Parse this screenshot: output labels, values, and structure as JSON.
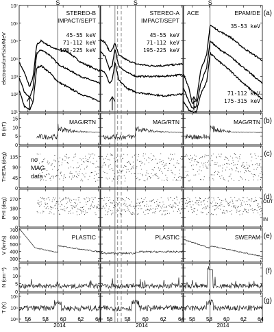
{
  "chart_data": {
    "type": "line",
    "x_axis": {
      "ticks": [
        "56",
        "58",
        "60",
        "62",
        "64"
      ],
      "year": "2014",
      "xlim": [
        55,
        64.2
      ]
    },
    "shock_marker": "S",
    "spacecraft_columns": [
      {
        "id": "stb",
        "flux_instrument": "STEREO-B",
        "flux_instrument2": "IMPACT/SEPT",
        "flux_channels": [
          "45-55 keV",
          "71-112 keV",
          "195-225 keV"
        ],
        "mag_label": "MAG/RTN",
        "plasma_label": "PLASMA",
        "plasma_label_text": "PLASTIC",
        "no_data_note": [
          "no",
          "MAG",
          "data"
        ]
      },
      {
        "id": "sta",
        "flux_instrument": "STEREO-A",
        "flux_instrument2": "IMPACT/SEPT",
        "flux_channels": [
          "45-55 keV",
          "71-112 keV",
          "195-225 keV"
        ],
        "mag_label": "MAG/RTN",
        "plasma_label_text": "PLASTIC"
      },
      {
        "id": "ace",
        "flux_instrument": "ACE",
        "flux_instrument2": "EPAM/DE",
        "flux_channels_top": [
          "35-53 keV"
        ],
        "flux_channels_bottom": [
          "71-112 keV",
          "175-315 keV"
        ],
        "mag_label": "MAG/RTN",
        "plasma_label_text": "SWEPAM"
      }
    ],
    "panels": [
      {
        "id": "a",
        "tag": "(a)",
        "ylabel": "electrons/cm²/s/sr/MeV",
        "scale": "log",
        "yticks": [
          "10¹",
          "10²",
          "10³",
          "10⁴",
          "10⁵",
          "10⁶",
          "10⁷"
        ],
        "ylim": [
          1,
          7
        ]
      },
      {
        "id": "b",
        "tag": "(b)",
        "ylabel": "B (nT)",
        "yticks": [
          "0",
          "5",
          "10",
          "15"
        ],
        "ylim": [
          0,
          18
        ]
      },
      {
        "id": "c",
        "tag": "(c)",
        "ylabel": "THETA (deg)",
        "yticks": [
          "0",
          "45",
          "90",
          "135"
        ],
        "ylim": [
          0,
          180
        ]
      },
      {
        "id": "d",
        "tag": "(d)",
        "ylabel": "PHI (deg)",
        "yticks": [
          "0",
          "90",
          "180",
          "270"
        ],
        "ylim": [
          0,
          360
        ],
        "side_labels": [
          "OUT",
          "IN"
        ]
      },
      {
        "id": "e",
        "tag": "(e)",
        "ylabel": "V (km/s)",
        "yticks": [
          "300",
          "400",
          "500",
          "600",
          "700"
        ],
        "ylim": [
          250,
          720
        ]
      },
      {
        "id": "f",
        "tag": "(f)",
        "ylabel": "N (cm⁻³)",
        "yticks": [
          "0",
          "5",
          "10",
          "15"
        ],
        "ylim": [
          0,
          18
        ]
      },
      {
        "id": "g",
        "tag": "(g)",
        "ylabel": "T (K)",
        "scale": "log",
        "yticks": [
          "10⁴",
          "10⁵",
          "10⁶"
        ],
        "ylim": [
          3.7,
          6.3
        ]
      }
    ],
    "series": [
      {
        "column": "stb",
        "panel": "a",
        "name": "45-55 keV",
        "x": [
          55.0,
          55.6,
          56.2,
          56.6,
          57.0,
          57.5,
          58.5,
          59.4,
          60.5,
          62.0,
          64.2
        ],
        "y": [
          3.8,
          3.2,
          2.4,
          3.0,
          4.8,
          5.0,
          4.7,
          4.5,
          4.4,
          3.8,
          3.3
        ]
      },
      {
        "column": "stb",
        "panel": "a",
        "name": "71-112 keV",
        "x": [
          55.0,
          55.6,
          56.2,
          56.6,
          57.0,
          57.5,
          58.5,
          59.4,
          60.5,
          62.0,
          64.2
        ],
        "y": [
          2.9,
          2.1,
          1.8,
          2.4,
          4.3,
          4.5,
          4.2,
          3.7,
          3.4,
          3.0,
          2.6
        ]
      },
      {
        "column": "stb",
        "panel": "a",
        "name": "195-225 keV",
        "x": [
          55.0,
          55.6,
          56.2,
          56.6,
          57.0,
          57.5,
          58.5,
          59.4,
          60.5,
          62.0,
          64.2
        ],
        "y": [
          2.2,
          1.3,
          1.1,
          1.6,
          3.5,
          3.6,
          3.2,
          2.7,
          2.4,
          2.0,
          1.6
        ]
      },
      {
        "column": "sta",
        "panel": "a",
        "name": "45-55 keV",
        "x": [
          55.0,
          55.5,
          56.0,
          56.3,
          56.6,
          57.0,
          58.0,
          59.0,
          60.5,
          62.0,
          64.2
        ],
        "y": [
          5.1,
          4.9,
          4.4,
          4.5,
          4.9,
          4.2,
          3.9,
          3.7,
          3.6,
          3.6,
          3.7
        ]
      },
      {
        "column": "sta",
        "panel": "a",
        "name": "71-112 keV",
        "x": [
          55.0,
          55.5,
          56.0,
          56.3,
          56.6,
          57.0,
          58.0,
          59.0,
          60.5,
          62.0,
          64.2
        ],
        "y": [
          4.4,
          4.1,
          3.4,
          3.6,
          4.6,
          3.6,
          3.2,
          3.0,
          3.0,
          3.0,
          3.1
        ]
      },
      {
        "column": "sta",
        "panel": "a",
        "name": "195-225 keV",
        "x": [
          55.0,
          55.5,
          56.0,
          56.3,
          56.6,
          57.0,
          58.0,
          59.0,
          60.5,
          62.0,
          64.2
        ],
        "y": [
          3.4,
          3.2,
          2.6,
          2.8,
          3.8,
          2.8,
          2.3,
          2.1,
          2.0,
          1.9,
          2.0
        ]
      },
      {
        "column": "ace",
        "panel": "a",
        "name": "35-53 keV",
        "x": [
          55.0,
          55.6,
          56.0,
          56.5,
          57.0,
          57.7,
          58.1,
          59.0,
          60.5,
          62.0,
          64.2
        ],
        "y": [
          3.1,
          2.4,
          1.5,
          1.6,
          3.4,
          4.2,
          5.9,
          5.6,
          5.2,
          4.6,
          3.9
        ]
      },
      {
        "column": "ace",
        "panel": "a",
        "name": "71-112 keV",
        "x": [
          55.0,
          55.6,
          56.0,
          56.5,
          57.0,
          57.7,
          58.1,
          59.0,
          60.5,
          62.0,
          64.2
        ],
        "y": [
          2.3,
          1.6,
          1.2,
          1.3,
          2.6,
          3.5,
          5.0,
          4.6,
          4.1,
          3.5,
          2.6
        ]
      },
      {
        "column": "ace",
        "panel": "a",
        "name": "175-315 keV",
        "x": [
          55.0,
          55.6,
          56.0,
          56.5,
          57.0,
          57.7,
          58.1,
          59.0,
          60.5,
          62.0,
          64.2
        ],
        "y": [
          1.6,
          1.1,
          1.0,
          1.0,
          2.0,
          2.7,
          4.3,
          3.9,
          3.3,
          2.6,
          1.7
        ]
      }
    ],
    "markers": {
      "stb": {
        "shock_x": 59.4,
        "arrow_x": 56.2
      },
      "sta": {
        "shock_x": 58.9,
        "arrow_x": 56.3,
        "dashed_x": [
          56.9,
          57.3
        ],
        "solid_x": [
          56.6
        ]
      },
      "ace": {
        "shock_x": 58.1,
        "arrow_x": 56.2
      }
    }
  }
}
